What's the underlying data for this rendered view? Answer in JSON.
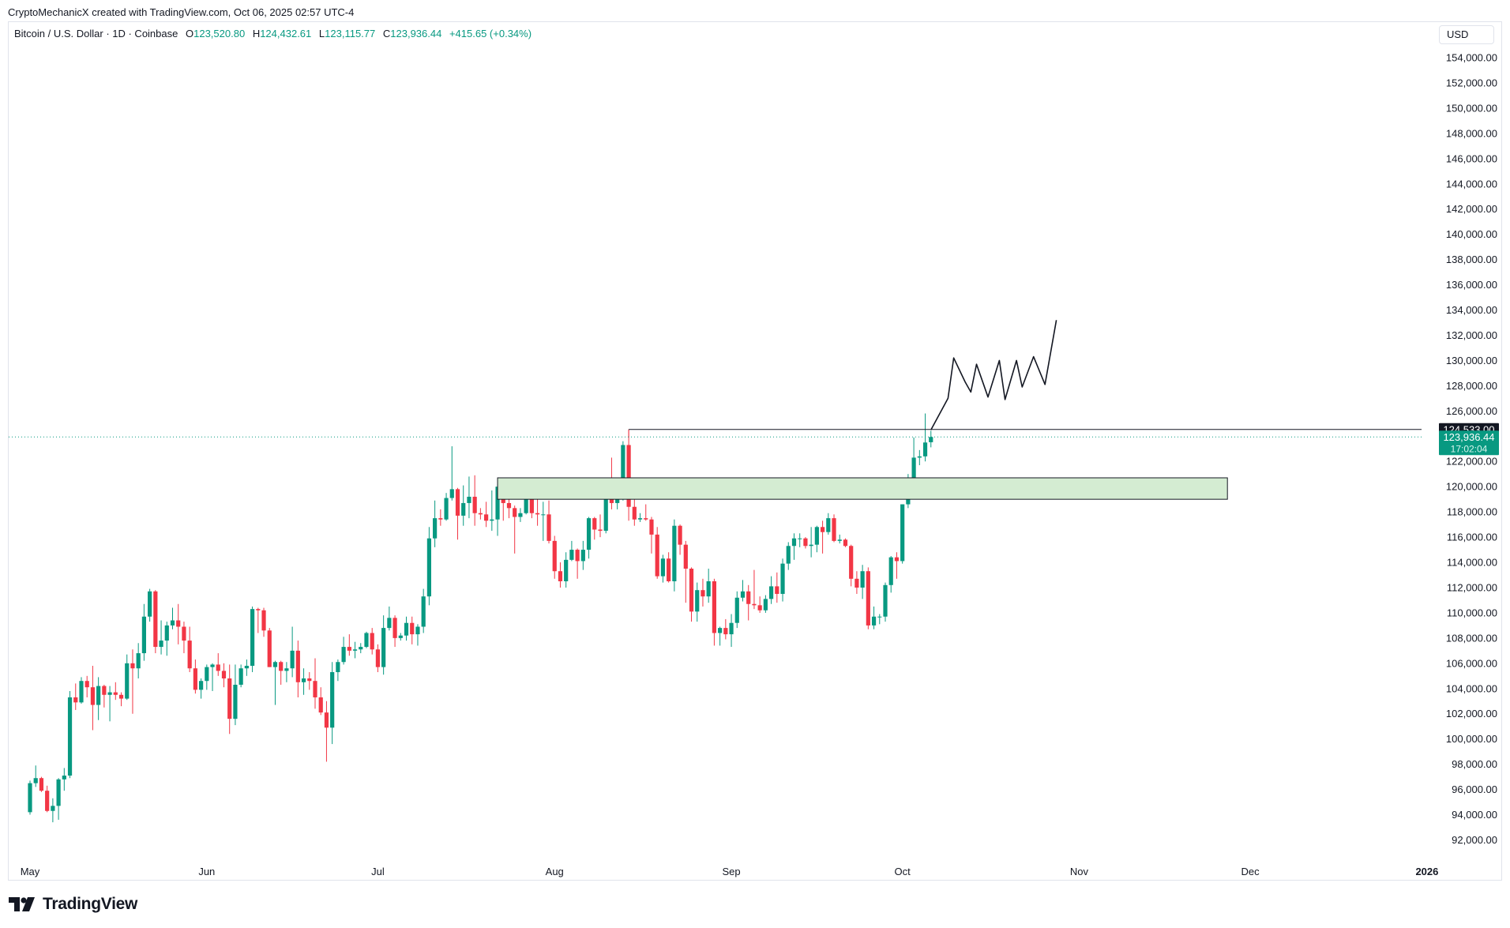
{
  "header": {
    "credit": "CryptoMechanicX created with TradingView.com, Oct 06, 2025 02:57 UTC-4"
  },
  "legend": {
    "symbol": "Bitcoin / U.S. Dollar · 1D · Coinbase",
    "open_label": "O",
    "open": "123,520.80",
    "high_label": "H",
    "high": "124,432.61",
    "low_label": "L",
    "low": "123,115.77",
    "close_label": "C",
    "close": "123,936.44",
    "change": "+415.65 (+0.34%)"
  },
  "currency": "USD",
  "brand": {
    "name": "TradingView",
    "icon": "tradingview-logo-icon"
  },
  "colors": {
    "up": "#089981",
    "down": "#f23645",
    "zone_fill": "#d4ecd2",
    "line": "#131722"
  },
  "chart_data": {
    "type": "candlestick",
    "title": "Bitcoin / U.S. Dollar · 1D · Coinbase",
    "ylim": [
      90000,
      156000
    ],
    "y_ticks": [
      "154,000.00",
      "152,000.00",
      "150,000.00",
      "148,000.00",
      "146,000.00",
      "144,000.00",
      "142,000.00",
      "140,000.00",
      "138,000.00",
      "136,000.00",
      "134,000.00",
      "132,000.00",
      "130,000.00",
      "128,000.00",
      "126,000.00",
      "124,000.00",
      "122,000.00",
      "120,000.00",
      "118,000.00",
      "116,000.00",
      "114,000.00",
      "112,000.00",
      "110,000.00",
      "108,000.00",
      "106,000.00",
      "104,000.00",
      "102,000.00",
      "100,000.00",
      "98,000.00",
      "96,000.00",
      "94,000.00",
      "92,000.00"
    ],
    "x_ticks": [
      "May",
      "Jun",
      "Jul",
      "Aug",
      "Sep",
      "Oct",
      "Nov",
      "Dec",
      "2026"
    ],
    "price_labels": {
      "level": "124,533.00",
      "current": "123,936.44",
      "countdown": "17:02:04"
    },
    "level_line": {
      "value": 124533,
      "from": "2025-08-14"
    },
    "current_price": 123936.44,
    "zone": {
      "low": 119000,
      "high": 120700,
      "from": "2025-07-22",
      "to": "2025-11-27"
    },
    "projection": [
      [
        "2025-10-06",
        124500
      ],
      [
        "2025-10-09",
        127000
      ],
      [
        "2025-10-10",
        130200
      ],
      [
        "2025-10-12",
        128300
      ],
      [
        "2025-10-13",
        127500
      ],
      [
        "2025-10-14",
        129700
      ],
      [
        "2025-10-16",
        127100
      ],
      [
        "2025-10-18",
        130000
      ],
      [
        "2025-10-19",
        126900
      ],
      [
        "2025-10-21",
        130000
      ],
      [
        "2025-10-22",
        127900
      ],
      [
        "2025-10-24",
        130300
      ],
      [
        "2025-10-26",
        128100
      ],
      [
        "2025-10-28",
        133200
      ]
    ],
    "candles": [
      [
        "2025-05-01",
        94200,
        96700,
        94000,
        96500
      ],
      [
        "2025-05-02",
        96500,
        97900,
        96200,
        96900
      ],
      [
        "2025-05-03",
        96900,
        97000,
        95800,
        95900
      ],
      [
        "2025-05-04",
        95900,
        96300,
        94200,
        94300
      ],
      [
        "2025-05-05",
        94300,
        95300,
        93400,
        94700
      ],
      [
        "2025-05-06",
        94700,
        96900,
        93600,
        96800
      ],
      [
        "2025-05-07",
        96800,
        97700,
        95900,
        97100
      ],
      [
        "2025-05-08",
        97100,
        103800,
        96900,
        103300
      ],
      [
        "2025-05-09",
        103300,
        104400,
        102300,
        102900
      ],
      [
        "2025-05-10",
        102900,
        104900,
        102800,
        104600
      ],
      [
        "2025-05-11",
        104600,
        105000,
        103300,
        104100
      ],
      [
        "2025-05-12",
        104100,
        105800,
        100700,
        102700
      ],
      [
        "2025-05-13",
        102700,
        104900,
        101500,
        104200
      ],
      [
        "2025-05-14",
        104200,
        104300,
        102500,
        103500
      ],
      [
        "2025-05-15",
        103500,
        104200,
        101400,
        103700
      ],
      [
        "2025-05-16",
        103700,
        104500,
        103100,
        103500
      ],
      [
        "2025-05-17",
        103500,
        103700,
        102600,
        103200
      ],
      [
        "2025-05-18",
        103200,
        106700,
        103100,
        106000
      ],
      [
        "2025-05-19",
        106000,
        107100,
        102000,
        105600
      ],
      [
        "2025-05-20",
        105600,
        107600,
        104800,
        106800
      ],
      [
        "2025-05-21",
        106800,
        110700,
        106200,
        109700
      ],
      [
        "2025-05-22",
        109700,
        111900,
        109300,
        111700
      ],
      [
        "2025-05-23",
        111700,
        111800,
        106800,
        107300
      ],
      [
        "2025-05-24",
        107300,
        109400,
        106700,
        107800
      ],
      [
        "2025-05-25",
        107800,
        109300,
        106600,
        109000
      ],
      [
        "2025-05-26",
        109000,
        110400,
        108700,
        109400
      ],
      [
        "2025-05-27",
        109400,
        110700,
        107500,
        108900
      ],
      [
        "2025-05-28",
        108900,
        109300,
        106800,
        107800
      ],
      [
        "2025-05-29",
        107800,
        108900,
        105300,
        105600
      ],
      [
        "2025-05-30",
        105600,
        106300,
        103600,
        103900
      ],
      [
        "2025-05-31",
        103900,
        104800,
        103200,
        104600
      ],
      [
        "2025-06-01",
        104600,
        105900,
        103900,
        105700
      ],
      [
        "2025-06-02",
        105700,
        106000,
        103800,
        105900
      ],
      [
        "2025-06-03",
        105900,
        106800,
        105000,
        105400
      ],
      [
        "2025-06-04",
        105400,
        106000,
        104100,
        104800
      ],
      [
        "2025-06-05",
        104800,
        105900,
        100400,
        101600
      ],
      [
        "2025-06-06",
        101600,
        105900,
        101100,
        104300
      ],
      [
        "2025-06-07",
        104300,
        105900,
        104100,
        105600
      ],
      [
        "2025-06-08",
        105600,
        106300,
        105000,
        105800
      ],
      [
        "2025-06-09",
        105800,
        110500,
        105300,
        110300
      ],
      [
        "2025-06-10",
        110300,
        110400,
        108400,
        110200
      ],
      [
        "2025-06-11",
        110200,
        110400,
        108100,
        108600
      ],
      [
        "2025-06-12",
        108600,
        108800,
        105700,
        105700
      ],
      [
        "2025-06-13",
        105700,
        106200,
        102700,
        106100
      ],
      [
        "2025-06-14",
        106100,
        106200,
        104300,
        105400
      ],
      [
        "2025-06-15",
        105400,
        106100,
        104500,
        105600
      ],
      [
        "2025-06-16",
        105600,
        108900,
        104900,
        107000
      ],
      [
        "2025-06-17",
        107000,
        107800,
        103300,
        104500
      ],
      [
        "2025-06-18",
        104500,
        105600,
        103500,
        104800
      ],
      [
        "2025-06-19",
        104800,
        105300,
        103900,
        104600
      ],
      [
        "2025-06-20",
        104600,
        106400,
        102400,
        103300
      ],
      [
        "2025-06-21",
        103300,
        104100,
        101900,
        102100
      ],
      [
        "2025-06-22",
        102100,
        103000,
        98200,
        100900
      ],
      [
        "2025-06-23",
        100900,
        106100,
        99600,
        105300
      ],
      [
        "2025-06-24",
        105300,
        106300,
        104600,
        106100
      ],
      [
        "2025-06-25",
        106100,
        108100,
        105900,
        107300
      ],
      [
        "2025-06-26",
        107300,
        108300,
        106600,
        107000
      ],
      [
        "2025-06-27",
        107000,
        107700,
        106400,
        107100
      ],
      [
        "2025-06-28",
        107100,
        107600,
        106800,
        107300
      ],
      [
        "2025-06-29",
        107300,
        108500,
        107200,
        108400
      ],
      [
        "2025-06-30",
        108400,
        108800,
        106700,
        107100
      ],
      [
        "2025-07-01",
        107100,
        107500,
        105300,
        105700
      ],
      [
        "2025-07-02",
        105700,
        109800,
        105100,
        108800
      ],
      [
        "2025-07-03",
        108800,
        110500,
        108600,
        109600
      ],
      [
        "2025-07-04",
        109600,
        109800,
        107300,
        108000
      ],
      [
        "2025-07-05",
        108000,
        108400,
        107800,
        108200
      ],
      [
        "2025-07-06",
        108200,
        109700,
        107800,
        109200
      ],
      [
        "2025-07-07",
        109200,
        109700,
        107500,
        108300
      ],
      [
        "2025-07-08",
        108300,
        109100,
        107400,
        108900
      ],
      [
        "2025-07-09",
        108900,
        111900,
        108400,
        111300
      ],
      [
        "2025-07-10",
        111300,
        116800,
        110600,
        115900
      ],
      [
        "2025-07-11",
        115900,
        118900,
        115200,
        117500
      ],
      [
        "2025-07-12",
        117500,
        118200,
        116900,
        117400
      ],
      [
        "2025-07-13",
        117400,
        119500,
        117300,
        119100
      ],
      [
        "2025-07-14",
        119100,
        123200,
        118900,
        119800
      ],
      [
        "2025-07-15",
        119800,
        119900,
        115800,
        117700
      ],
      [
        "2025-07-16",
        117700,
        120100,
        116900,
        118700
      ],
      [
        "2025-07-17",
        118700,
        120800,
        117500,
        119200
      ],
      [
        "2025-07-18",
        119200,
        120900,
        116900,
        117900
      ],
      [
        "2025-07-19",
        117900,
        118300,
        117400,
        117800
      ],
      [
        "2025-07-20",
        117800,
        118800,
        116800,
        117300
      ],
      [
        "2025-07-21",
        117300,
        119700,
        116500,
        117400
      ],
      [
        "2025-07-22",
        117400,
        120200,
        116100,
        120000
      ],
      [
        "2025-07-23",
        120000,
        120300,
        117300,
        118700
      ],
      [
        "2025-07-24",
        118700,
        119500,
        117500,
        118300
      ],
      [
        "2025-07-25",
        118300,
        118500,
        114700,
        117600
      ],
      [
        "2025-07-26",
        117600,
        118300,
        117200,
        117900
      ],
      [
        "2025-07-27",
        117900,
        119800,
        117800,
        119400
      ],
      [
        "2025-07-28",
        119400,
        119800,
        117500,
        117900
      ],
      [
        "2025-07-29",
        117900,
        119300,
        116900,
        117800
      ],
      [
        "2025-07-30",
        117800,
        118800,
        115700,
        117800
      ],
      [
        "2025-07-31",
        117800,
        118900,
        115500,
        115700
      ],
      [
        "2025-08-01",
        115700,
        116100,
        112700,
        113300
      ],
      [
        "2025-08-02",
        113300,
        114000,
        112000,
        112500
      ],
      [
        "2025-08-03",
        112500,
        114800,
        112000,
        114200
      ],
      [
        "2025-08-04",
        114200,
        115700,
        114100,
        115000
      ],
      [
        "2025-08-05",
        115000,
        115100,
        112700,
        114100
      ],
      [
        "2025-08-06",
        114100,
        115700,
        113400,
        115000
      ],
      [
        "2025-08-07",
        115000,
        117600,
        114300,
        117500
      ],
      [
        "2025-08-08",
        117500,
        117600,
        115800,
        116600
      ],
      [
        "2025-08-09",
        116600,
        117800,
        116000,
        116500
      ],
      [
        "2025-08-10",
        116500,
        119300,
        116300,
        119300
      ],
      [
        "2025-08-11",
        119300,
        122300,
        118200,
        118700
      ],
      [
        "2025-08-12",
        118700,
        120200,
        118200,
        120100
      ],
      [
        "2025-08-13",
        120100,
        123600,
        118900,
        123300
      ],
      [
        "2025-08-14",
        123300,
        124533,
        117300,
        118400
      ],
      [
        "2025-08-15",
        118400,
        119300,
        116900,
        117400
      ],
      [
        "2025-08-16",
        117400,
        117900,
        117200,
        117500
      ],
      [
        "2025-08-17",
        117500,
        118600,
        117300,
        117400
      ],
      [
        "2025-08-18",
        117400,
        117600,
        114700,
        116200
      ],
      [
        "2025-08-19",
        116200,
        116800,
        112700,
        112900
      ],
      [
        "2025-08-20",
        112900,
        114600,
        112400,
        114300
      ],
      [
        "2025-08-21",
        114300,
        114800,
        112400,
        112500
      ],
      [
        "2025-08-22",
        112500,
        117400,
        111700,
        116900
      ],
      [
        "2025-08-23",
        116900,
        117000,
        114600,
        115400
      ],
      [
        "2025-08-24",
        115400,
        115700,
        110800,
        113500
      ],
      [
        "2025-08-25",
        113500,
        113600,
        109300,
        110100
      ],
      [
        "2025-08-26",
        110100,
        112400,
        109300,
        111800
      ],
      [
        "2025-08-27",
        111800,
        112700,
        110500,
        111300
      ],
      [
        "2025-08-28",
        111300,
        113500,
        110800,
        112500
      ],
      [
        "2025-08-29",
        112500,
        112700,
        107400,
        108400
      ],
      [
        "2025-08-30",
        108400,
        108900,
        107400,
        108800
      ],
      [
        "2025-08-31",
        108800,
        109500,
        107900,
        108300
      ],
      [
        "2025-09-01",
        108300,
        109900,
        107300,
        109200
      ],
      [
        "2025-09-02",
        109200,
        111700,
        108800,
        111200
      ],
      [
        "2025-09-03",
        111200,
        112600,
        110900,
        111700
      ],
      [
        "2025-09-04",
        111700,
        112200,
        109400,
        110700
      ],
      [
        "2025-09-05",
        110700,
        113400,
        110300,
        110600
      ],
      [
        "2025-09-06",
        110600,
        111300,
        110000,
        110200
      ],
      [
        "2025-09-07",
        110200,
        111400,
        110000,
        111100
      ],
      [
        "2025-09-08",
        111100,
        112900,
        110700,
        112100
      ],
      [
        "2025-09-09",
        112100,
        113200,
        110800,
        111500
      ],
      [
        "2025-09-10",
        111500,
        114300,
        110900,
        113900
      ],
      [
        "2025-09-11",
        113900,
        115600,
        113400,
        115300
      ],
      [
        "2025-09-12",
        115300,
        116300,
        114200,
        115900
      ],
      [
        "2025-09-13",
        115900,
        116300,
        115200,
        115900
      ],
      [
        "2025-09-14",
        115900,
        116000,
        115100,
        115300
      ],
      [
        "2025-09-15",
        115300,
        116800,
        114400,
        115400
      ],
      [
        "2025-09-16",
        115400,
        116900,
        114800,
        116800
      ],
      [
        "2025-09-17",
        116800,
        117300,
        114700,
        116400
      ],
      [
        "2025-09-18",
        116400,
        117900,
        116200,
        117500
      ],
      [
        "2025-09-19",
        117500,
        117800,
        115600,
        115700
      ],
      [
        "2025-09-20",
        115700,
        116200,
        115500,
        115800
      ],
      [
        "2025-09-21",
        115800,
        115900,
        115200,
        115300
      ],
      [
        "2025-09-22",
        115300,
        115400,
        112100,
        112700
      ],
      [
        "2025-09-23",
        112700,
        113300,
        111500,
        112000
      ],
      [
        "2025-09-24",
        112000,
        113800,
        111100,
        113300
      ],
      [
        "2025-09-25",
        113300,
        113600,
        108700,
        109000
      ],
      [
        "2025-09-26",
        109000,
        110500,
        108700,
        109700
      ],
      [
        "2025-09-27",
        109700,
        109900,
        109100,
        109700
      ],
      [
        "2025-09-28",
        109700,
        112400,
        109300,
        112200
      ],
      [
        "2025-09-29",
        112200,
        114500,
        111600,
        114400
      ],
      [
        "2025-09-30",
        114400,
        114800,
        112700,
        114100
      ],
      [
        "2025-10-01",
        114100,
        118600,
        113900,
        118600
      ],
      [
        "2025-10-02",
        118600,
        121000,
        118300,
        120600
      ],
      [
        "2025-10-03",
        120600,
        123900,
        119300,
        122300
      ],
      [
        "2025-10-04",
        122300,
        122900,
        121700,
        122400
      ],
      [
        "2025-10-05",
        122400,
        125800,
        122000,
        123500
      ],
      [
        "2025-10-06",
        123520.8,
        124432.61,
        123115.77,
        123936.44
      ]
    ]
  }
}
